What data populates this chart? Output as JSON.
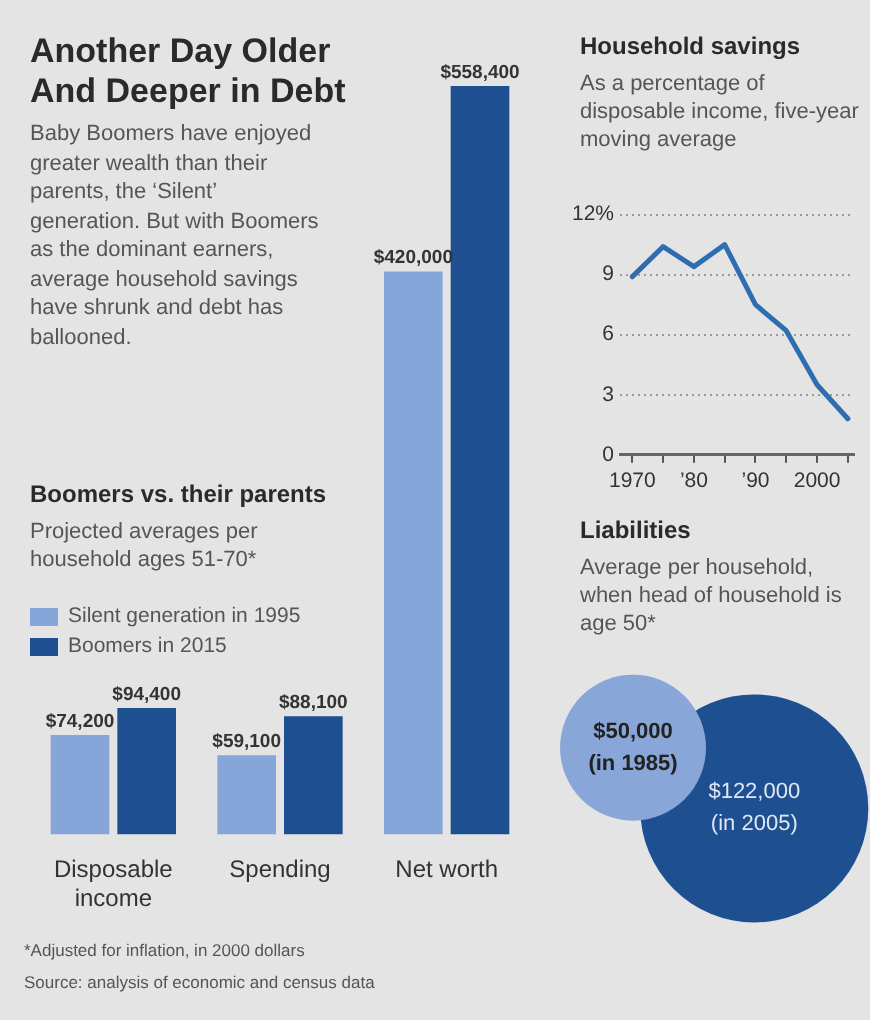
{
  "chart_data": [
    {
      "type": "other",
      "title": "Another Day Older And Deeper in Debt",
      "annotations": [
        "Baby Boomers have enjoyed greater wealth than their parents, the ‘Silent’ generation. But with Boomers as the dominant earners, average household savings have shrunk and debt has ballooned.",
        "*Adjusted for inflation, in 2000 dollars",
        "Source: analysis of economic and census data"
      ]
    },
    {
      "type": "bar",
      "title": "Boomers vs. their parents",
      "subtitle": "Projected averages per household ages 51-70*",
      "categories": [
        "Disposable income",
        "Spending",
        "Net worth"
      ],
      "legend": "left",
      "series": [
        {
          "name": "Silent generation in 1995",
          "color": "#86a5d9",
          "values": [
            74200,
            59100,
            420000
          ],
          "value_labels": [
            "$74,200",
            "$59,100",
            "$420,000"
          ]
        },
        {
          "name": "Boomers in 2015",
          "color": "#1d4f91",
          "values": [
            94400,
            88100,
            558400
          ],
          "value_labels": [
            "$94,400",
            "$88,100",
            "$558,400"
          ]
        }
      ]
    },
    {
      "type": "line",
      "title": "Household savings",
      "subtitle": "As a percentage of disposable income, five-year moving average",
      "x": [
        1970,
        1975,
        1980,
        1985,
        1990,
        1995,
        2000,
        2005
      ],
      "series": [
        {
          "color": "#2e6db0",
          "values": [
            8.9,
            10.4,
            9.4,
            10.5,
            7.5,
            6.2,
            3.5,
            1.8
          ]
        }
      ],
      "xlim": [
        1968,
        2006
      ],
      "xticks": [
        1970,
        {
          "value": 1975,
          "label": null
        },
        {
          "value": 1980,
          "label": "’80"
        },
        {
          "value": 1985,
          "label": null
        },
        {
          "value": 1990,
          "label": "’90"
        },
        {
          "value": 1995,
          "label": null
        },
        2000,
        {
          "value": 2005,
          "label": null
        }
      ],
      "ylim": [
        0,
        12
      ],
      "yticks": [
        0,
        3,
        6,
        9,
        {
          "value": 12,
          "label": "12%"
        }
      ],
      "grid": "y"
    },
    {
      "type": "other",
      "title": "Liabilities",
      "subtitle": "Average per household, when head of household is age 50*",
      "categories": [
        "(in 1985)",
        "(in 2005)"
      ],
      "values": [
        50000,
        122000
      ],
      "value_labels": [
        "$50,000",
        "$122,000"
      ],
      "colors": [
        "#88a6d8",
        "#1d4f91"
      ]
    }
  ]
}
